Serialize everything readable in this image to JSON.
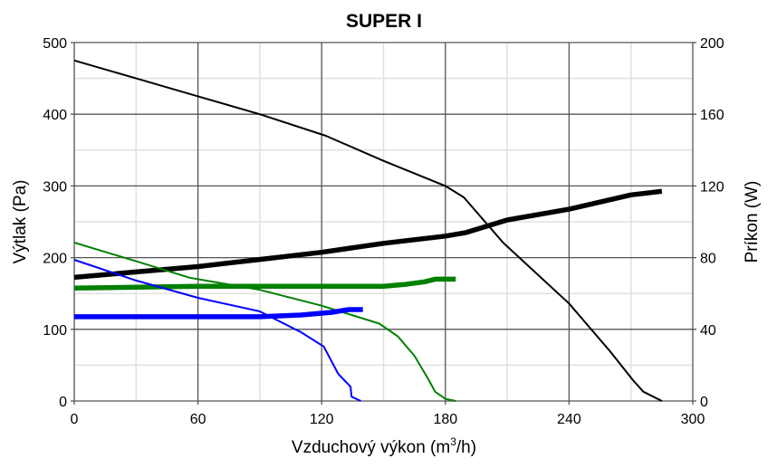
{
  "chart_data": {
    "type": "line",
    "title": "SUPER I",
    "xlabel": "Vzduchový výkon (m",
    "xlabel_sup": "3",
    "xlabel_end": "/h)",
    "ylabel": "Výtlak (Pa)",
    "y2label": "Príkon (W)",
    "xlim": [
      0,
      300
    ],
    "ylim": [
      0,
      500
    ],
    "y2lim": [
      0,
      200
    ],
    "xticks": [
      0,
      60,
      120,
      180,
      240,
      300
    ],
    "yticks": [
      0,
      100,
      200,
      300,
      400,
      500
    ],
    "y2ticks": [
      0,
      40,
      80,
      120,
      160,
      200
    ],
    "grid": true,
    "series": [
      {
        "axis": "left",
        "color": "#000000",
        "weight": "thin",
        "x": [
          0,
          30,
          60,
          90,
          122,
          150,
          180,
          189,
          208,
          240,
          260,
          271,
          276,
          285
        ],
        "y": [
          475,
          450,
          425,
          400,
          370,
          335,
          300,
          284,
          221,
          136,
          69,
          29,
          13,
          0
        ]
      },
      {
        "axis": "right",
        "color": "#000000",
        "weight": "thick",
        "x": [
          0,
          30,
          60,
          90,
          120,
          150,
          180,
          190,
          210,
          240,
          270,
          285
        ],
        "y": [
          69,
          72,
          75,
          79,
          83,
          88,
          92,
          94,
          101,
          107,
          115,
          117
        ]
      },
      {
        "axis": "left",
        "color": "#008000",
        "weight": "thin",
        "x": [
          0,
          30,
          56,
          90,
          120,
          148,
          157,
          165,
          172,
          175,
          180,
          185
        ],
        "y": [
          221,
          195,
          172,
          155,
          133,
          108,
          90,
          63,
          29,
          13,
          3,
          0
        ]
      },
      {
        "axis": "right",
        "color": "#008000",
        "weight": "thick",
        "x": [
          0,
          60,
          150,
          160,
          170,
          175,
          185
        ],
        "y": [
          63,
          64,
          64,
          65,
          66.5,
          68,
          68
        ]
      },
      {
        "axis": "left",
        "color": "#0000ff",
        "weight": "thin",
        "x": [
          0,
          30,
          60,
          90,
          110,
          121,
          128,
          134,
          134.5,
          139
        ],
        "y": [
          197,
          168,
          144,
          125,
          96,
          76,
          38,
          20,
          6,
          0
        ]
      },
      {
        "axis": "right",
        "color": "#0000ff",
        "weight": "thick",
        "x": [
          0,
          90,
          110,
          125,
          133,
          140
        ],
        "y": [
          47,
          47,
          48,
          49.5,
          51,
          51
        ]
      }
    ]
  }
}
